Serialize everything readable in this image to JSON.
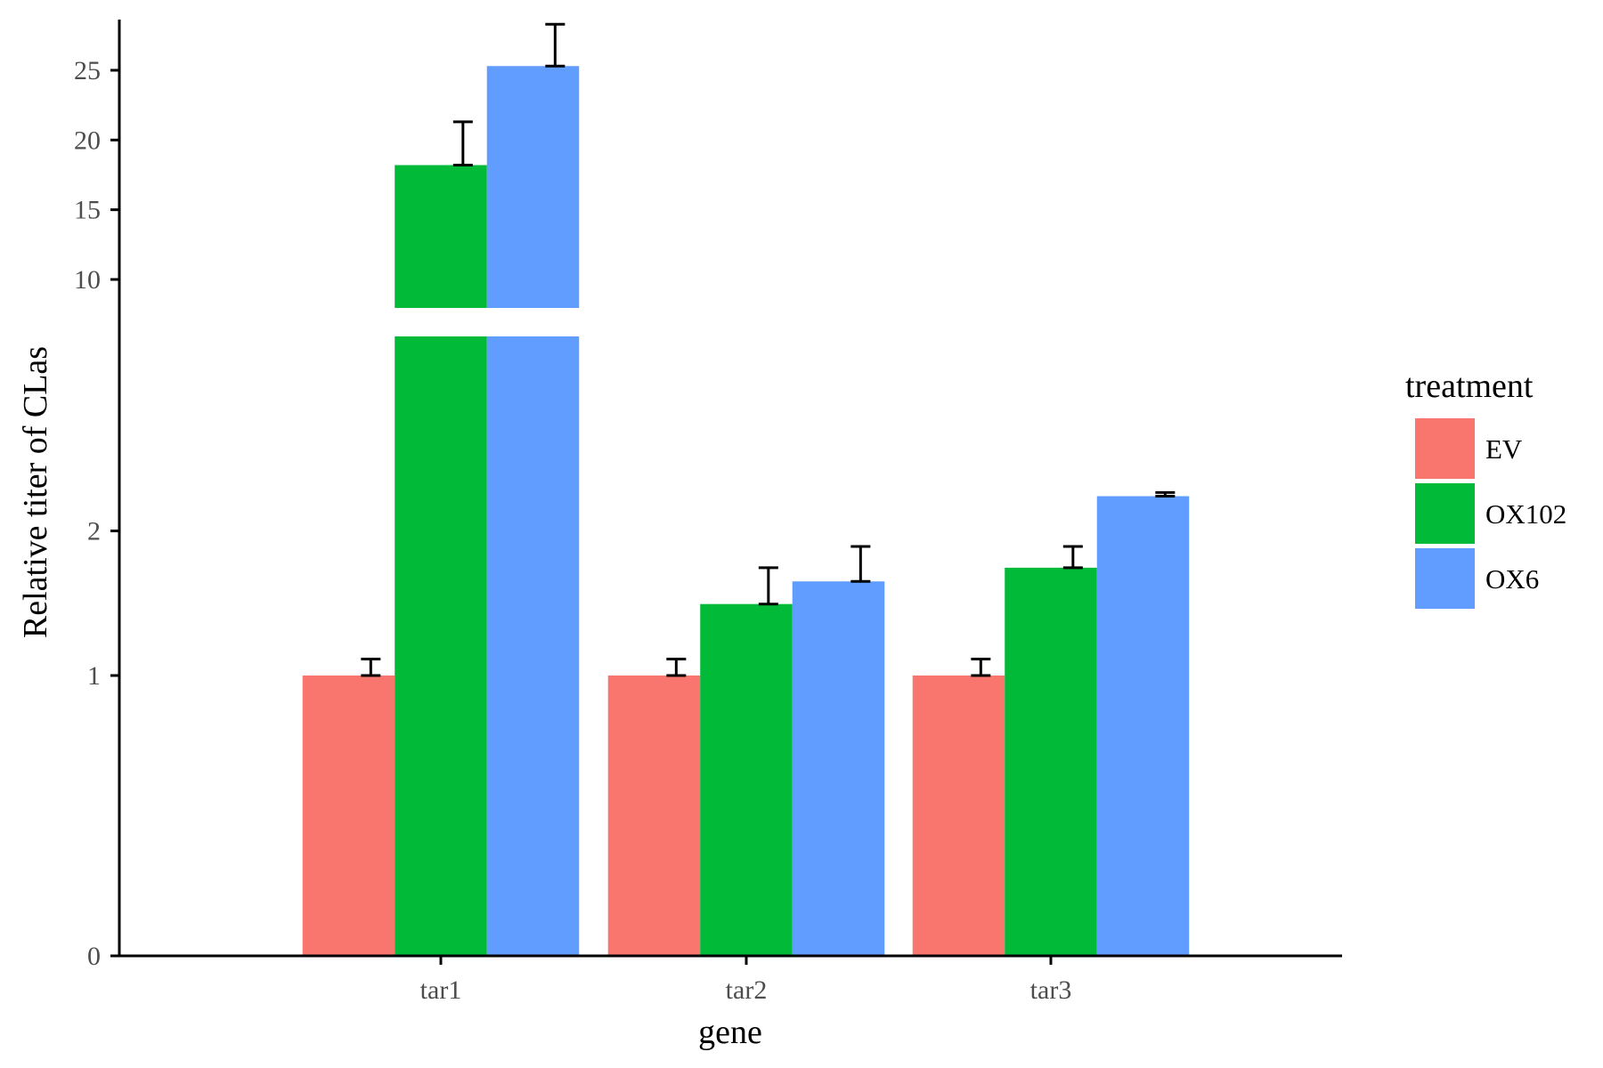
{
  "chart_data": {
    "type": "bar",
    "categories": [
      "tar1",
      "tar2",
      "tar3"
    ],
    "xlabel": "gene",
    "ylabel": "Relative titer of CLas",
    "ylim": [
      0,
      27
    ],
    "y_axis_break": true,
    "y_ticks_lower": [
      "0",
      "1",
      "2"
    ],
    "y_ticks_upper": [
      "10",
      "15",
      "20",
      "25"
    ],
    "grid": false,
    "legend": {
      "title": "treatment",
      "placement": "right"
    },
    "series": [
      {
        "name": "EV",
        "color": "#F8766D",
        "values": [
          1,
          1,
          1
        ],
        "error_upper": [
          1.1,
          1.1,
          1.1
        ]
      },
      {
        "name": "OX102",
        "color": "#00BA38",
        "values": [
          18.2,
          1.46,
          1.72
        ],
        "error_upper": [
          21.3,
          1.72,
          1.88
        ]
      },
      {
        "name": "OX6",
        "color": "#619CFF",
        "values": [
          25.3,
          1.62,
          2.28
        ],
        "error_upper": [
          28.3,
          1.88,
          2.31
        ]
      }
    ]
  }
}
